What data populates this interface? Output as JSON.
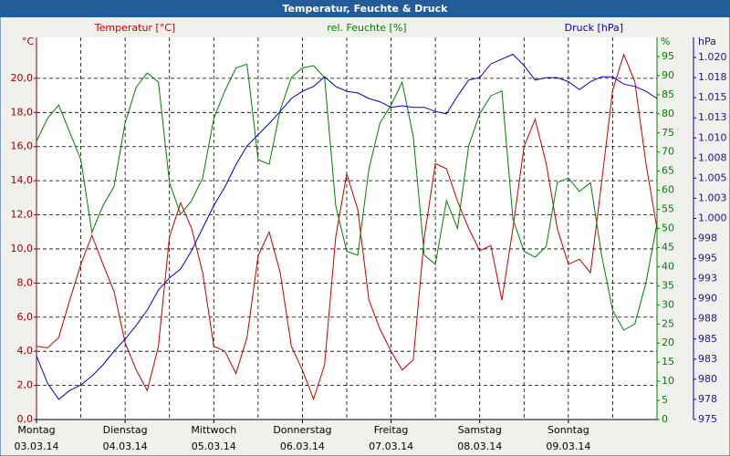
{
  "chart_data": {
    "type": "line",
    "title": "Temperatur, Feuchte & Druck",
    "x": [
      0,
      3,
      6,
      9,
      12,
      15,
      18,
      21,
      24,
      27,
      30,
      33,
      36,
      39,
      42,
      45,
      48,
      51,
      54,
      57,
      60,
      63,
      66,
      69,
      72,
      75,
      78,
      81,
      84,
      87,
      90,
      93,
      96,
      99,
      102,
      105,
      108,
      111,
      114,
      117,
      120,
      123,
      126,
      129,
      132,
      135,
      138,
      141,
      144,
      147,
      150,
      153,
      156,
      159,
      162,
      165,
      168
    ],
    "xlim": [
      0,
      168
    ],
    "xticks": [
      {
        "value": 0,
        "label": "Montag",
        "date": "03.03.14"
      },
      {
        "value": 24,
        "label": "Dienstag",
        "date": "04.03.14"
      },
      {
        "value": 48,
        "label": "Mittwoch",
        "date": "05.03.14"
      },
      {
        "value": 72,
        "label": "Donnerstag",
        "date": "06.03.14"
      },
      {
        "value": 96,
        "label": "Freitag",
        "date": "07.03.14"
      },
      {
        "value": 120,
        "label": "Samstag",
        "date": "08.03.14"
      },
      {
        "value": 144,
        "label": "Sonntag",
        "date": "09.03.14"
      }
    ],
    "xgrid": [
      12,
      36,
      60,
      84,
      108,
      132,
      156,
      168
    ],
    "ylabel": "°C",
    "ylim": [
      0,
      22.4
    ],
    "yticks": [
      {
        "value": 0,
        "label": "0,0"
      },
      {
        "value": 2,
        "label": "2,0"
      },
      {
        "value": 4,
        "label": "4,0"
      },
      {
        "value": 6,
        "label": "6,0"
      },
      {
        "value": 8,
        "label": "8,0"
      },
      {
        "value": 10,
        "label": "10,0"
      },
      {
        "value": 12,
        "label": "12,0"
      },
      {
        "value": 14,
        "label": "14,0"
      },
      {
        "value": 16,
        "label": "16,0"
      },
      {
        "value": 18,
        "label": "18,0"
      },
      {
        "value": 20,
        "label": "20,0"
      }
    ],
    "y2label": "%",
    "y2lim": [
      0,
      100
    ],
    "y2ticks": [
      0,
      5,
      10,
      15,
      20,
      25,
      30,
      35,
      40,
      45,
      50,
      55,
      60,
      65,
      70,
      75,
      80,
      85,
      90,
      95
    ],
    "y3label": "hPa",
    "y3lim": [
      975,
      1022.5
    ],
    "y3ticks": [
      975,
      {
        "value": 977.5,
        "label": "978"
      },
      980,
      {
        "value": 982.5,
        "label": "983"
      },
      985,
      {
        "value": 987.5,
        "label": "988"
      },
      990,
      {
        "value": 992.5,
        "label": "993"
      },
      995,
      {
        "value": 997.5,
        "label": "998"
      },
      {
        "value": 1000,
        "label": "1.000"
      },
      {
        "value": 1002.5,
        "label": "1.003"
      },
      {
        "value": 1005,
        "label": "1.005"
      },
      {
        "value": 1007.5,
        "label": "1.008"
      },
      {
        "value": 1010,
        "label": "1.010"
      },
      {
        "value": 1012.5,
        "label": "1.013"
      },
      {
        "value": 1015,
        "label": "1.015"
      },
      {
        "value": 1017.5,
        "label": "1.018"
      },
      {
        "value": 1020,
        "label": "1.020"
      }
    ],
    "grid": true,
    "series": [
      {
        "name": "Temperatur [°C]",
        "color": "#c00000",
        "axis": "y",
        "values": [
          4.3,
          4.2,
          4.8,
          7.0,
          9.1,
          10.8,
          9.1,
          7.5,
          4.5,
          2.9,
          1.7,
          4.3,
          10.7,
          12.7,
          11.2,
          8.6,
          4.3,
          4.0,
          2.7,
          4.8,
          9.6,
          11.0,
          8.6,
          4.3,
          2.9,
          1.2,
          3.2,
          10.7,
          14.4,
          12.3,
          7.0,
          5.3,
          4.0,
          2.9,
          3.5,
          10.7,
          15.0,
          14.7,
          12.8,
          11.2,
          9.9,
          10.2,
          7.0,
          11.2,
          16.0,
          17.6,
          15.0,
          11.2,
          9.1,
          9.4,
          8.6,
          13.9,
          19.3,
          21.4,
          19.8,
          15.0,
          11.2
        ]
      },
      {
        "name": "rel. Feuchte [%]",
        "color": "#008000",
        "axis": "y2",
        "values": [
          72.8,
          78.8,
          82.3,
          75.2,
          68,
          49,
          56,
          61,
          77.6,
          87,
          90.7,
          88.3,
          62,
          53.7,
          57.3,
          63.2,
          78.8,
          86,
          92,
          93,
          68,
          66.8,
          81,
          89.5,
          92,
          92.6,
          89.5,
          56,
          44,
          43,
          65.6,
          77.6,
          82.3,
          88.3,
          74,
          43,
          40.6,
          57.3,
          50,
          71.6,
          80,
          84.7,
          86,
          52.5,
          44,
          42.5,
          45.3,
          62,
          63.2,
          59.7,
          62,
          43,
          28.6,
          23.4,
          25,
          35.8,
          51.3
        ]
      },
      {
        "name": "Druck [hPa]",
        "color": "#0000c0",
        "axis": "y3",
        "values": [
          982.9,
          979.5,
          977.5,
          978.6,
          979.3,
          980.4,
          981.8,
          983.5,
          985.0,
          986.7,
          988.6,
          991.1,
          992.6,
          993.7,
          996,
          998.8,
          1001.6,
          1003.9,
          1006.7,
          1009,
          1010.4,
          1011.8,
          1013.3,
          1014.9,
          1015.8,
          1016.4,
          1017.6,
          1016.4,
          1015.8,
          1015.6,
          1014.9,
          1014.5,
          1013.8,
          1014,
          1013.8,
          1013.8,
          1013.3,
          1013,
          1015.2,
          1017.2,
          1017.5,
          1019.2,
          1019.8,
          1020.4,
          1019,
          1017.2,
          1017.5,
          1017.5,
          1017,
          1016,
          1017,
          1017.6,
          1017.6,
          1016.7,
          1016.4,
          1015.8,
          1014.9
        ]
      }
    ]
  }
}
